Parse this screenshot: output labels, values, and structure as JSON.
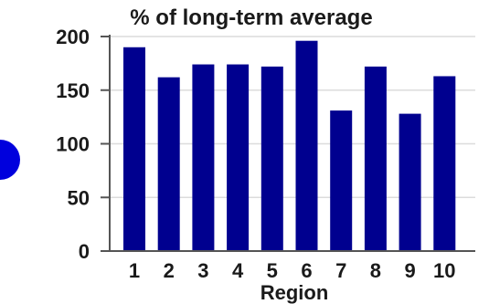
{
  "chart_data": {
    "type": "bar",
    "title": "% of long-term average",
    "xlabel": "Region",
    "ylabel": "",
    "categories": [
      "1",
      "2",
      "3",
      "4",
      "5",
      "6",
      "7",
      "8",
      "9",
      "10"
    ],
    "values": [
      190,
      162,
      174,
      174,
      172,
      196,
      131,
      172,
      128,
      163
    ],
    "ylim": [
      0,
      200
    ],
    "yticks": [
      "0",
      "50",
      "100",
      "150",
      "200"
    ],
    "grid": true,
    "legend": "none",
    "colors": {
      "bar": "#00008f",
      "text": "#1a1a1a",
      "grid": "#dcdcdc",
      "axis": "#555555",
      "marker": "#0000dd"
    }
  }
}
